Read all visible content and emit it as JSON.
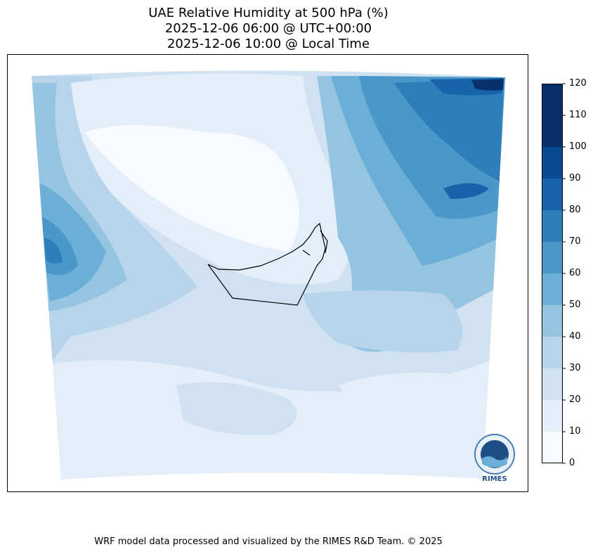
{
  "title_lines": [
    "UAE Relative Humidity at 500 hPa (%)",
    "2025-12-06 06:00 @ UTC+00:00",
    "2025-12-06 10:00 @ Local Time"
  ],
  "colorbar": {
    "ticks": [
      "0",
      "10",
      "20",
      "30",
      "40",
      "50",
      "60",
      "70",
      "80",
      "90",
      "100",
      "110",
      "120"
    ],
    "colors": [
      "#f7fbff",
      "#e3eef9",
      "#d0e1f2",
      "#b7d4ea",
      "#94c4df",
      "#6baed6",
      "#4a98c9",
      "#2e7ebc",
      "#1764ab",
      "#084a91",
      "#08306b",
      "#08306b"
    ]
  },
  "logo": {
    "text": "RIMES",
    "icon": "rimes-logo-icon"
  },
  "footer": "WRF model data processed and visualized by the RIMES R&D Team. © 2025"
}
